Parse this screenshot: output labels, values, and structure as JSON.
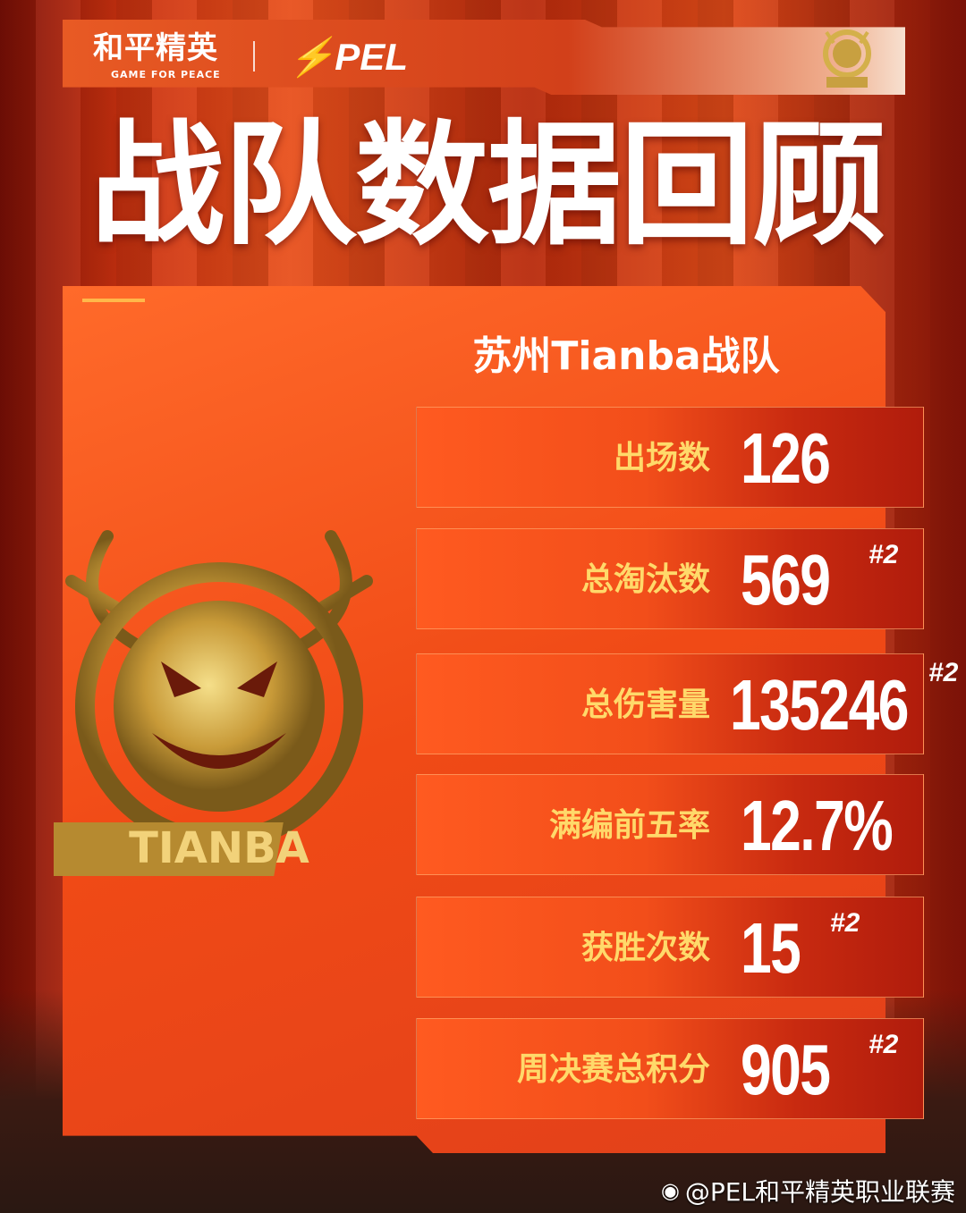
{
  "header": {
    "brand_cn": "和平精英",
    "brand_en": "GAME FOR PEACE",
    "league": "PEL"
  },
  "title": "战队数据回顾",
  "team": "苏州Tianba战队",
  "emblem_text": "TIANBA",
  "stats": [
    {
      "label": "出场数",
      "value": "126",
      "rank": ""
    },
    {
      "label": "总淘汰数",
      "value": "569",
      "rank": "#2"
    },
    {
      "label": "总伤害量",
      "value": "135246",
      "rank": "#2"
    },
    {
      "label": "满编前五率",
      "value": "12.7%",
      "rank": ""
    },
    {
      "label": "获胜次数",
      "value": "15",
      "rank": "#2"
    },
    {
      "label": "周决赛总积分",
      "value": "905",
      "rank": "#2"
    }
  ],
  "watermark": "@PEL和平精英职业联赛",
  "colors": {
    "label": "#ffd96a",
    "value": "#ffffff",
    "panel": "#f04a16",
    "gold": "#d4b04a"
  }
}
